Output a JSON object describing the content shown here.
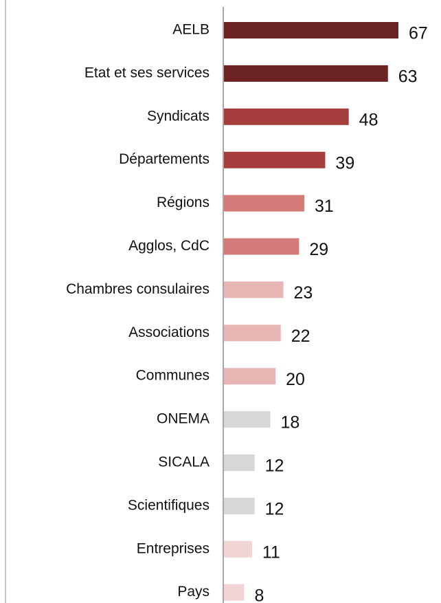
{
  "chart_data": {
    "type": "barh",
    "categories": [
      "AELB",
      "Etat et ses services",
      "Syndicats",
      "Départements",
      "Régions",
      "Agglos, CdC",
      "Chambres consulaires",
      "Associations",
      "Communes",
      "ONEMA",
      "SICALA",
      "Scientifiques",
      "Entreprises",
      "Pays"
    ],
    "values": [
      67,
      63,
      48,
      39,
      31,
      29,
      23,
      22,
      20,
      18,
      12,
      12,
      11,
      8
    ],
    "colors": [
      "#6b2323",
      "#6b2323",
      "#a53d3c",
      "#a53d3c",
      "#d27b79",
      "#d27b79",
      "#e8b5b5",
      "#e8b5b5",
      "#e8b5b5",
      "#d7d7d7",
      "#d7d7d7",
      "#d7d7d7",
      "#f1d5d5",
      "#f1d5d5"
    ]
  }
}
